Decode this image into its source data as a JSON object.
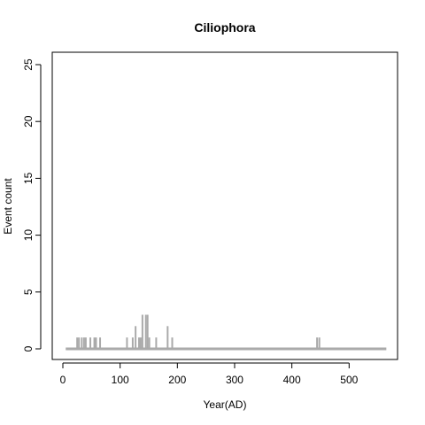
{
  "chart_data": {
    "type": "bar",
    "title": "Ciliophora",
    "xlabel": "Year(AD)",
    "ylabel": "Event count",
    "xlim": [
      0,
      570
    ],
    "ylim": [
      0,
      25
    ],
    "xticks": [
      0,
      100,
      200,
      300,
      400,
      500
    ],
    "yticks": [
      0,
      5,
      10,
      15,
      20,
      25
    ],
    "baseline": {
      "x_start": 5,
      "x_end": 565,
      "y": 0
    },
    "series": [
      {
        "points": [
          {
            "x": 25,
            "y": 1
          },
          {
            "x": 28,
            "y": 1
          },
          {
            "x": 33,
            "y": 1
          },
          {
            "x": 37,
            "y": 1
          },
          {
            "x": 40,
            "y": 1
          },
          {
            "x": 48,
            "y": 1
          },
          {
            "x": 55,
            "y": 1
          },
          {
            "x": 58,
            "y": 1
          },
          {
            "x": 65,
            "y": 1
          },
          {
            "x": 112,
            "y": 1
          },
          {
            "x": 122,
            "y": 1
          },
          {
            "x": 127,
            "y": 2
          },
          {
            "x": 133,
            "y": 1
          },
          {
            "x": 136,
            "y": 1
          },
          {
            "x": 139,
            "y": 3
          },
          {
            "x": 145,
            "y": 3
          },
          {
            "x": 148,
            "y": 3
          },
          {
            "x": 151,
            "y": 1
          },
          {
            "x": 163,
            "y": 1
          },
          {
            "x": 183,
            "y": 2
          },
          {
            "x": 191,
            "y": 1
          },
          {
            "x": 444,
            "y": 1
          },
          {
            "x": 448,
            "y": 1
          }
        ]
      }
    ],
    "colors": {
      "bars": "#aaaaaa",
      "frame": "#000000"
    }
  }
}
